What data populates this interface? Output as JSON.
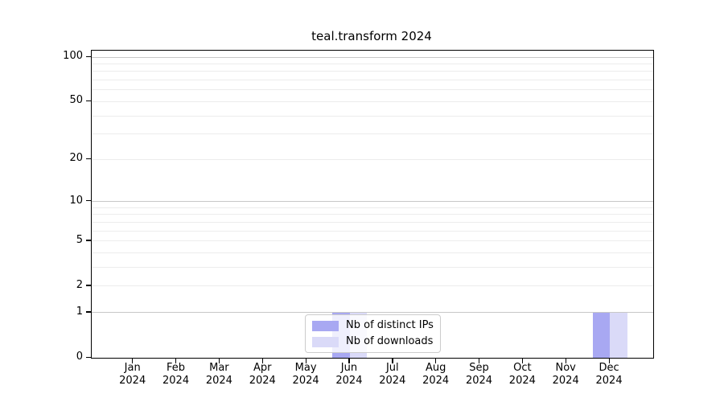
{
  "title": "teal.transform 2024",
  "chart_data": {
    "type": "bar",
    "title": "teal.transform 2024",
    "categories": [
      "Jan",
      "Feb",
      "Mar",
      "Apr",
      "May",
      "Jun",
      "Jul",
      "Aug",
      "Sep",
      "Oct",
      "Nov",
      "Dec"
    ],
    "year_label": "2024",
    "series": [
      {
        "name": "Nb of distinct IPs",
        "color": "#a8a8f2",
        "values": [
          0,
          0,
          0,
          0,
          0,
          1,
          0,
          0,
          0,
          0,
          0,
          1
        ]
      },
      {
        "name": "Nb of downloads",
        "color": "#dadaf8",
        "values": [
          0,
          0,
          0,
          0,
          0,
          1,
          0,
          0,
          0,
          0,
          0,
          1
        ]
      }
    ],
    "y_axis": {
      "scale": "log1p",
      "ticks": [
        0,
        1,
        2,
        5,
        10,
        20,
        50,
        100
      ],
      "minor_grid_ticks": [
        2,
        3,
        4,
        5,
        6,
        7,
        8,
        9,
        20,
        30,
        40,
        50,
        60,
        70,
        80,
        90
      ],
      "major_grid_ticks": [
        1,
        10,
        100
      ]
    },
    "x_axis": {
      "tick_line1": [
        "Jan",
        "Feb",
        "Mar",
        "Apr",
        "May",
        "Jun",
        "Jul",
        "Aug",
        "Sep",
        "Oct",
        "Nov",
        "Dec"
      ],
      "tick_line2": "2024"
    },
    "legend": {
      "position": "lower center",
      "entries": [
        "Nb of distinct IPs",
        "Nb of downloads"
      ]
    },
    "grid": true,
    "ylim_top_value": 110.5
  },
  "colors": {
    "minor_grid": "#ececec",
    "major_grid": "#c7c7c7",
    "spine": "#000000",
    "legend_border": "#cccccc",
    "background": "#ffffff"
  }
}
